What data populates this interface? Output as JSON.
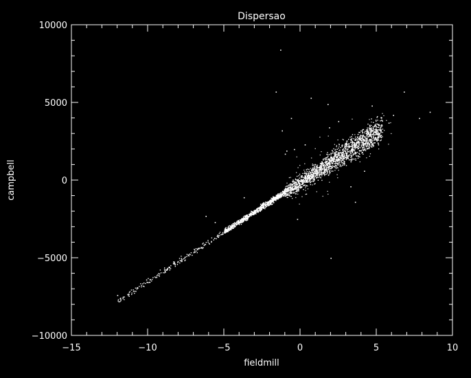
{
  "chart_data": {
    "type": "scatter",
    "title": "Dispersao",
    "xlabel": "fieldmill",
    "ylabel": "campbell",
    "xlim": [
      -15,
      10
    ],
    "ylim": [
      -10000,
      10000
    ],
    "xticks": [
      -15,
      -10,
      -5,
      0,
      5,
      10
    ],
    "yticks": [
      -10000,
      -5000,
      0,
      5000,
      10000
    ],
    "xtick_labels": [
      "−15",
      "−10",
      "−5",
      "0",
      "5",
      "10"
    ],
    "ytick_labels": [
      "−10000",
      "−5000",
      "0",
      "5000",
      "10000"
    ],
    "background_color": "#000000",
    "foreground_color": "#ffffff",
    "grid": false,
    "legend": "none",
    "trend": {
      "slope": 640,
      "intercept": -110,
      "x_range": [
        -12,
        5.4
      ]
    },
    "outliers": [
      {
        "x": -1.3,
        "y": 8400
      },
      {
        "x": -1.6,
        "y": 5700
      },
      {
        "x": 0.7,
        "y": 5300
      },
      {
        "x": 1.8,
        "y": 4900
      },
      {
        "x": 4.7,
        "y": 4800
      },
      {
        "x": 6.8,
        "y": 5700
      },
      {
        "x": 8.5,
        "y": 4400
      },
      {
        "x": 7.8,
        "y": 4000
      },
      {
        "x": -0.6,
        "y": 4000
      },
      {
        "x": -1.2,
        "y": 3200
      },
      {
        "x": 1.9,
        "y": 3400
      },
      {
        "x": -0.4,
        "y": 2000
      },
      {
        "x": -0.9,
        "y": 1900
      },
      {
        "x": 0.3,
        "y": 2300
      },
      {
        "x": -3.7,
        "y": -1100
      },
      {
        "x": 3.6,
        "y": -1400
      },
      {
        "x": 2.0,
        "y": -5000
      },
      {
        "x": -0.2,
        "y": -2500
      },
      {
        "x": -6.2,
        "y": -2300
      },
      {
        "x": -5.6,
        "y": -2700
      },
      {
        "x": -10.1,
        "y": -6400
      },
      {
        "x": -12.0,
        "y": -7400
      },
      {
        "x": 3.3,
        "y": -400
      },
      {
        "x": 4.2,
        "y": 600
      },
      {
        "x": 2.5,
        "y": 3800
      },
      {
        "x": -1.0,
        "y": 1700
      },
      {
        "x": 6.1,
        "y": 4200
      },
      {
        "x": 5.8,
        "y": 3700
      }
    ]
  }
}
